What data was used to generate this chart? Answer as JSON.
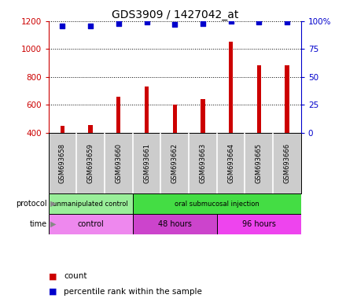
{
  "title": "GDS3909 / 1427042_at",
  "samples": [
    "GSM693658",
    "GSM693659",
    "GSM693660",
    "GSM693661",
    "GSM693662",
    "GSM693663",
    "GSM693664",
    "GSM693665",
    "GSM693666"
  ],
  "counts": [
    450,
    452,
    660,
    730,
    600,
    640,
    1055,
    885,
    885
  ],
  "percentile_ranks": [
    96,
    96,
    98,
    99,
    97,
    98,
    100,
    99,
    99
  ],
  "ylim_left": [
    400,
    1200
  ],
  "ylim_right": [
    0,
    100
  ],
  "yticks_left": [
    400,
    600,
    800,
    1000,
    1200
  ],
  "yticks_right": [
    0,
    25,
    50,
    75,
    100
  ],
  "bar_color": "#cc0000",
  "scatter_color": "#0000cc",
  "protocol_groups": [
    {
      "label": "unmanipulated control",
      "start": 0,
      "end": 3,
      "color": "#99ee99"
    },
    {
      "label": "oral submucosal injection",
      "start": 3,
      "end": 9,
      "color": "#44dd44"
    }
  ],
  "time_groups": [
    {
      "label": "control",
      "start": 0,
      "end": 3,
      "color": "#ee88ee"
    },
    {
      "label": "48 hours",
      "start": 3,
      "end": 6,
      "color": "#cc44cc"
    },
    {
      "label": "96 hours",
      "start": 6,
      "end": 9,
      "color": "#ee44ee"
    }
  ],
  "bg_color": "#ffffff",
  "left_tick_color": "#cc0000",
  "right_tick_color": "#0000cc",
  "xticklabel_bg": "#cccccc"
}
